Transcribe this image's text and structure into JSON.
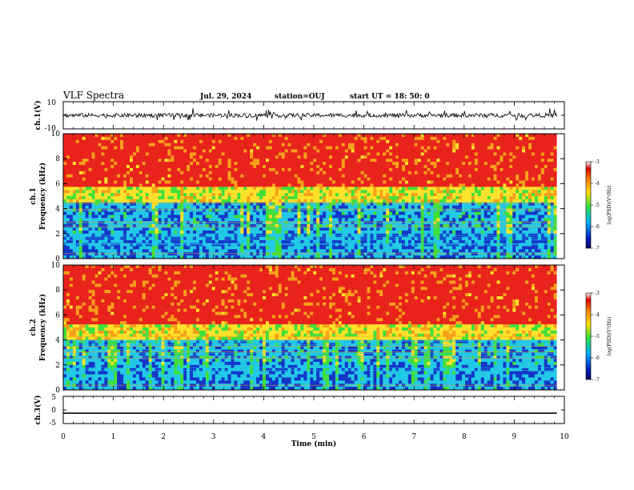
{
  "header": {
    "title": "VLF Spectra",
    "date": "Jul. 29, 2024",
    "station": "station=OUJ",
    "start": "start UT =  18: 50: 0"
  },
  "chart_data": [
    {
      "type": "line",
      "panel": "ch1-waveform",
      "ylabel": "ch.1(V)",
      "ylim": [
        -10,
        10
      ],
      "yticks": [
        "10",
        "-10"
      ],
      "xlim": [
        0,
        10
      ],
      "description_values": {
        "mean": 0,
        "typical_range": [
          -2.5,
          2.5
        ],
        "cutoff_min": 9.85
      }
    },
    {
      "type": "heatmap",
      "panel": "ch1-spectrogram",
      "ylabel_top": "ch.1",
      "ylabel": "Frequency (kHz)",
      "ylim": [
        0,
        10
      ],
      "yticks": [
        "0",
        "2",
        "4",
        "6",
        "8",
        "10"
      ],
      "xlim": [
        0,
        10
      ],
      "colorbar": {
        "label": "log(PSD)(V²/Hz)",
        "range": [
          -7,
          -3
        ],
        "ticks": [
          "-3",
          "-4",
          "-5",
          "-6",
          "-7"
        ]
      },
      "bands_khz": {
        "strong_low": [
          0,
          4.5
        ],
        "high_red": [
          5.5,
          10
        ]
      }
    },
    {
      "type": "heatmap",
      "panel": "ch2-spectrogram",
      "ylabel_top": "ch.2",
      "ylabel": "Frequency (kHz)",
      "ylim": [
        0,
        10
      ],
      "yticks": [
        "0",
        "2",
        "4",
        "6",
        "8",
        "10"
      ],
      "xlim": [
        0,
        10
      ],
      "colorbar": {
        "label": "log(PSD)(V²/Hz)",
        "range": [
          -7,
          -3
        ],
        "ticks": [
          "-3",
          "-4",
          "-5",
          "-6",
          "-7"
        ]
      },
      "bands_khz": {
        "strong_low": [
          0,
          4
        ],
        "high_red": [
          5,
          10
        ]
      }
    },
    {
      "type": "line",
      "panel": "ch3-waveform",
      "ylabel": "ch.3(V)",
      "ylim": [
        -5,
        5
      ],
      "yticks": [
        "5",
        "0",
        "-5"
      ],
      "xlim": [
        0,
        10
      ],
      "x": [
        0,
        9.85
      ],
      "y": [
        -1.2,
        -1.2
      ]
    }
  ],
  "xaxis": {
    "label": "Time (min)",
    "ticks": [
      "0",
      "1",
      "2",
      "3",
      "4",
      "5",
      "6",
      "7",
      "8",
      "9",
      "10"
    ]
  },
  "colors": {
    "red": "#e8231c",
    "orange": "#f5a11a",
    "yellow": "#ffe22a",
    "green": "#3fe03a",
    "cyan": "#22c9e6",
    "blue": "#1436c9",
    "navy": "#001080"
  }
}
